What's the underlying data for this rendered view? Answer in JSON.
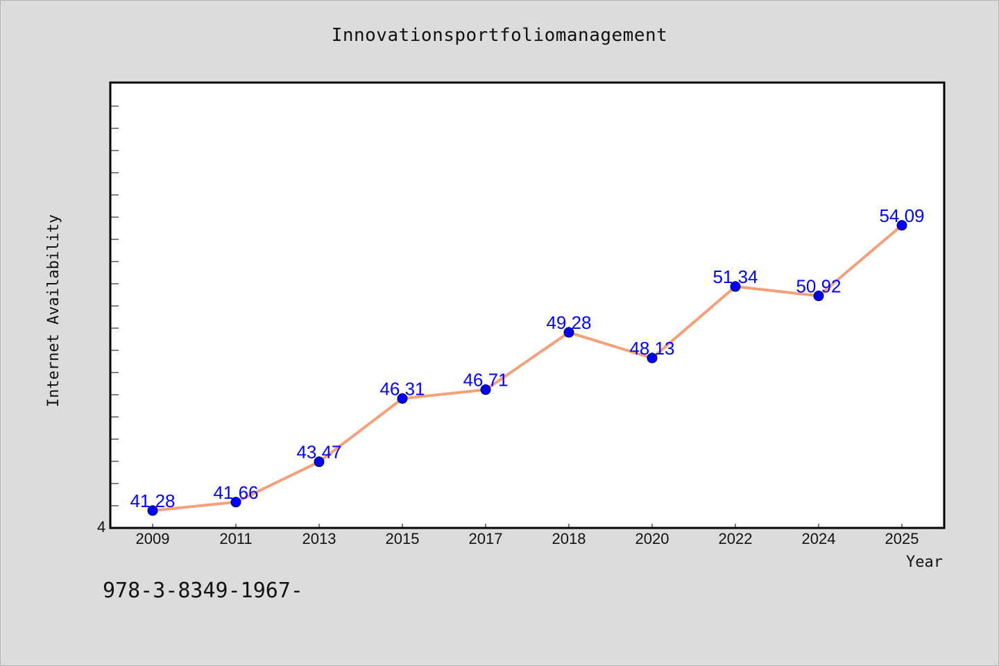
{
  "chart_data": {
    "type": "line",
    "title": "Innovationsportfoliomanagement",
    "xlabel": "Year",
    "ylabel": "Internet Availability",
    "categories": [
      "2009",
      "2011",
      "2013",
      "2015",
      "2017",
      "2018",
      "2020",
      "2022",
      "2024",
      "2025"
    ],
    "series": [
      {
        "values": [
          41.28,
          41.66,
          43.47,
          46.31,
          46.71,
          49.28,
          48.13,
          51.34,
          50.92,
          54.09
        ],
        "labels": [
          "41.28",
          "41.66",
          "43.47",
          "46.31",
          "46.71",
          "49.28",
          "48.13",
          "51.34",
          "50.92",
          "54.09"
        ]
      }
    ],
    "ylim": [
      40.5,
      60.5
    ],
    "y_tick_labels": [
      "4"
    ],
    "grid": false,
    "line_color": "#f4a07a",
    "marker_color": "#0000ff",
    "label_color": "#0000ff"
  },
  "footer_text": "978-3-8349-1967-"
}
